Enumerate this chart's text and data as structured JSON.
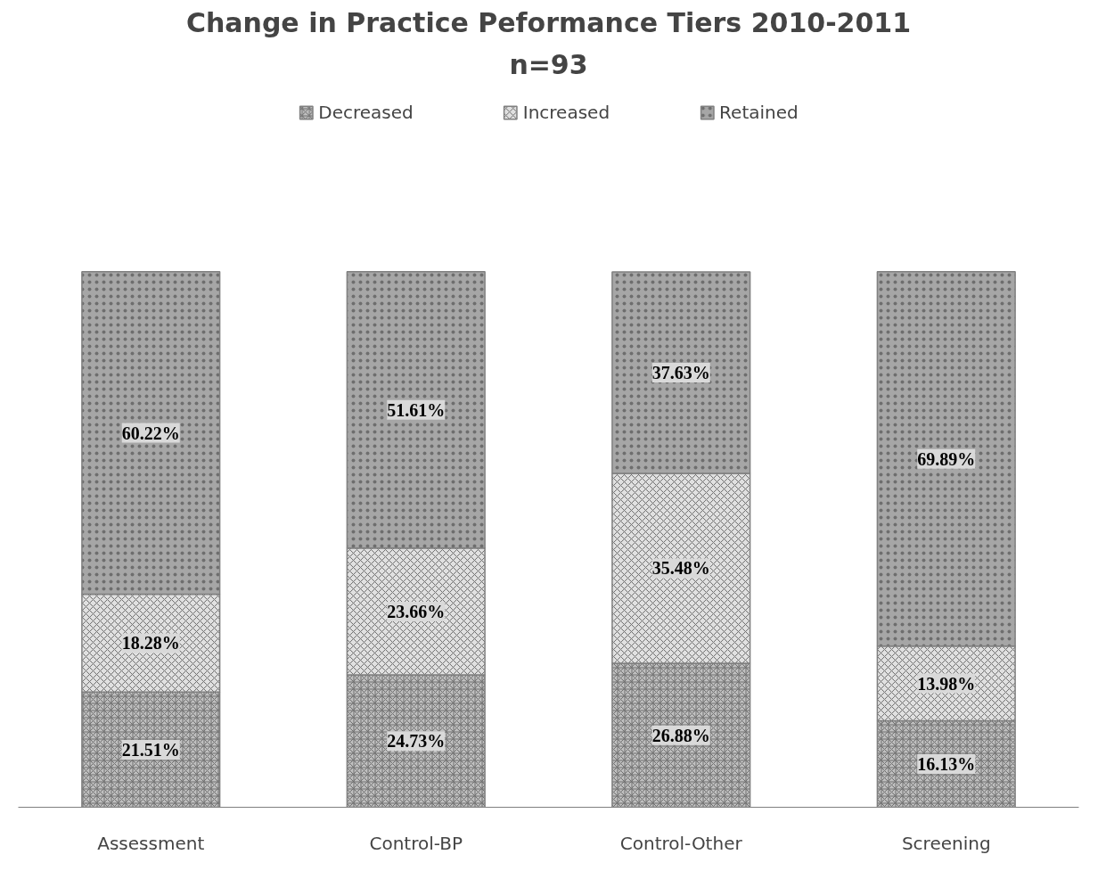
{
  "chart_data": {
    "type": "bar",
    "stacked": true,
    "title": "Change in Practice Peformance Tiers 2010-2011",
    "subtitle": "n=93",
    "categories": [
      "Assessment",
      "Control-BP",
      "Control-Other",
      "Screening"
    ],
    "series": [
      {
        "name": "Decreased",
        "color": "#bfbfbf",
        "values": [
          21.51,
          24.73,
          26.88,
          16.13
        ],
        "value_labels": [
          "21.51%",
          "24.73%",
          "26.88%",
          "16.13%"
        ]
      },
      {
        "name": "Increased",
        "color": "#e0e0e0",
        "values": [
          18.28,
          23.66,
          35.48,
          13.98
        ],
        "value_labels": [
          "18.28%",
          "23.66%",
          "35.48%",
          "13.98%"
        ]
      },
      {
        "name": "Retained",
        "color": "#a6a6a6",
        "values": [
          60.22,
          51.61,
          37.63,
          69.89
        ],
        "value_labels": [
          "60.22%",
          "51.61%",
          "37.63%",
          "69.89%"
        ]
      }
    ],
    "legend": "top",
    "grid": false
  }
}
